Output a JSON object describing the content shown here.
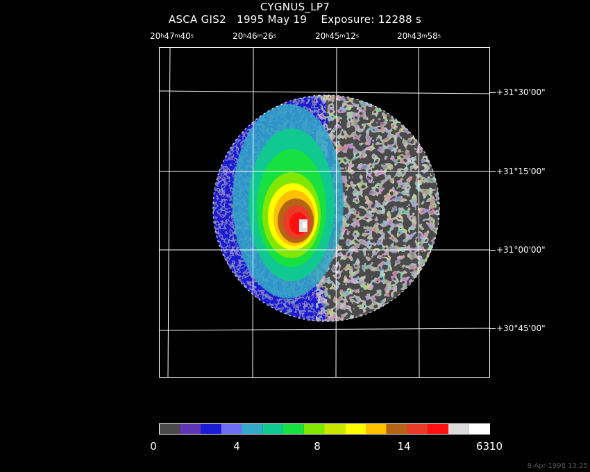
{
  "header": {
    "object": "CYGNUS_LP7",
    "observation": "ASCA GIS2   1995 May 19    Exposure: 12288 s"
  },
  "ra_labels": [
    {
      "h": "20",
      "m": "47",
      "s": "40"
    },
    {
      "h": "20",
      "m": "46",
      "s": "26"
    },
    {
      "h": "20",
      "m": "45",
      "s": "12"
    },
    {
      "h": "20",
      "m": "43",
      "s": "58"
    }
  ],
  "dec_labels": [
    "+31°30'00\"",
    "+31°15'00\"",
    "+31°00'00\"",
    "+30°45'00\""
  ],
  "colorbar": {
    "colors": [
      "#4a4a4a",
      "#5e35b4",
      "#1c1cd4",
      "#6e6ef4",
      "#33a8c8",
      "#10c890",
      "#18e040",
      "#80e800",
      "#c8e800",
      "#ffff00",
      "#ffc000",
      "#b46414",
      "#e83c28",
      "#ff1010",
      "#dcdcdc",
      "#ffffff"
    ],
    "tick_labels": [
      "0",
      "4",
      "8",
      "14",
      "6310"
    ]
  },
  "timestamp": "8-Apr-1998 13:25"
}
